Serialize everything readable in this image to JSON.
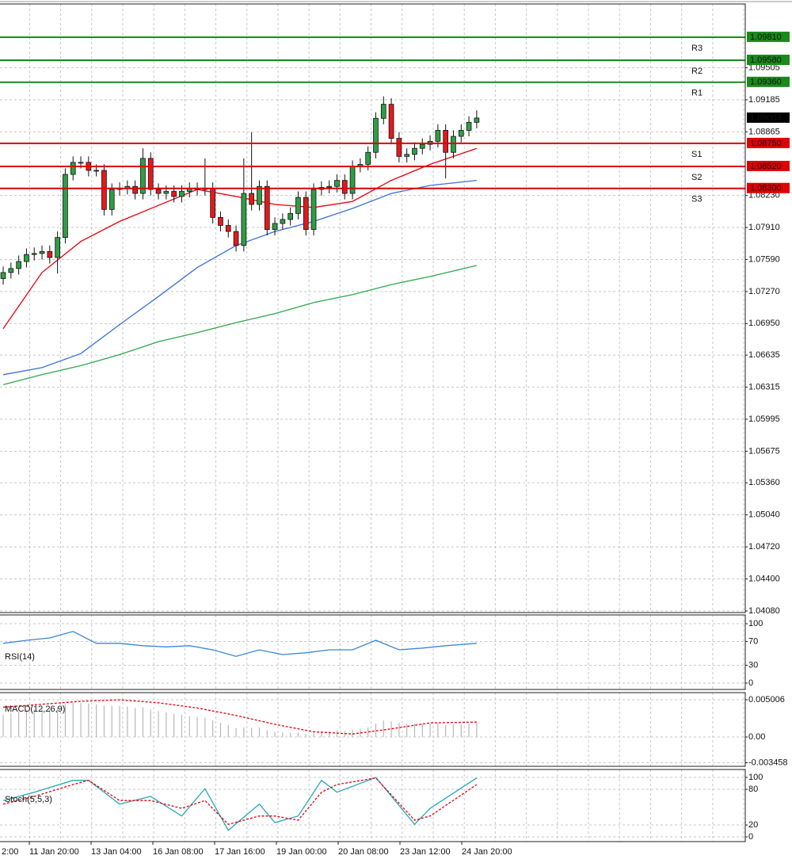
{
  "chart_data": [
    {
      "type": "candlestick",
      "xlim": [
        -0.41,
        95.6
      ],
      "ylim": [
        1.04064,
        1.10142
      ],
      "yticks": [
        1.09505,
        1.09185,
        1.08865,
        {
          "value": 1.0823,
          "label": "1.08230"
        },
        {
          "value": 1.0791,
          "label": "1.07910"
        },
        {
          "value": 1.0759,
          "label": "1.07590"
        },
        {
          "value": 1.0727,
          "label": "1.07270"
        },
        {
          "value": 1.0695,
          "label": "1.06950"
        },
        1.06635,
        1.06315,
        1.05995,
        1.05675,
        {
          "value": 1.0536,
          "label": "1.05360"
        },
        {
          "value": 1.0504,
          "label": "1.05040"
        },
        {
          "value": 1.0472,
          "label": "1.04720"
        },
        {
          "value": 1.044,
          "label": "1.04400"
        },
        {
          "value": 1.0408,
          "label": "1.04080"
        }
      ],
      "grid": true,
      "up_color": "#2f9e44",
      "down_color": "#e31a1c",
      "open": [
        1.074,
        1.0746,
        1.075,
        1.0757,
        1.0764,
        1.0765,
        1.0767,
        1.0761,
        1.0781,
        1.0844,
        1.0856,
        1.0856,
        1.0848,
        1.0848,
        1.0809,
        1.0829,
        1.083,
        1.0832,
        1.0825,
        1.086,
        1.0829,
        1.0825,
        1.0827,
        1.0822,
        1.0827,
        1.083,
        1.0829,
        1.083,
        1.0801,
        1.0793,
        1.0787,
        1.0773,
        1.0825,
        1.0814,
        1.0832,
        1.0789,
        1.0795,
        1.0799,
        1.0805,
        1.0821,
        1.0789,
        1.0829,
        1.0831,
        1.0832,
        1.0838,
        1.0825,
        1.0852,
        1.0854,
        1.0866,
        1.09,
        1.0914,
        1.088,
        1.0862,
        1.0864,
        1.087,
        1.0874,
        1.0877,
        1.0888,
        1.0866,
        1.0882,
        1.0888,
        1.0896
      ],
      "high": [
        1.0752,
        1.0756,
        1.0763,
        1.077,
        1.0771,
        1.0773,
        1.0773,
        1.0787,
        1.085,
        1.0862,
        1.0862,
        1.0862,
        1.0854,
        1.0854,
        1.0835,
        1.0836,
        1.0838,
        1.0838,
        1.087,
        1.0866,
        1.0835,
        1.0833,
        1.0833,
        1.0833,
        1.0836,
        1.0836,
        1.086,
        1.0836,
        1.0807,
        1.0799,
        1.0793,
        1.086,
        1.0886,
        1.0838,
        1.0838,
        1.0801,
        1.0805,
        1.0811,
        1.0827,
        1.0827,
        1.0835,
        1.0837,
        1.0838,
        1.0844,
        1.0844,
        1.0858,
        1.086,
        1.0872,
        1.0906,
        1.0922,
        1.092,
        1.0886,
        1.087,
        1.0876,
        1.088,
        1.0883,
        1.0894,
        1.0894,
        1.0888,
        1.0894,
        1.0902,
        1.0908
      ],
      "low": [
        1.0734,
        1.074,
        1.0744,
        1.0751,
        1.0758,
        1.0759,
        1.0755,
        1.0745,
        1.0775,
        1.0838,
        1.085,
        1.0842,
        1.0842,
        1.0803,
        1.0803,
        1.0823,
        1.0824,
        1.0819,
        1.0819,
        1.0823,
        1.0819,
        1.0819,
        1.0816,
        1.0816,
        1.0821,
        1.0823,
        1.0823,
        1.0795,
        1.0787,
        1.0781,
        1.0767,
        1.0767,
        1.0808,
        1.0808,
        1.0783,
        1.0783,
        1.0789,
        1.0793,
        1.0799,
        1.0783,
        1.0783,
        1.0823,
        1.0825,
        1.0826,
        1.0819,
        1.0819,
        1.0846,
        1.0848,
        1.086,
        1.0894,
        1.0874,
        1.0856,
        1.0856,
        1.0858,
        1.0864,
        1.0868,
        1.0871,
        1.084,
        1.086,
        1.0876,
        1.0882,
        1.089
      ],
      "close": [
        1.0746,
        1.075,
        1.0757,
        1.0764,
        1.0765,
        1.0767,
        1.0761,
        1.0781,
        1.0844,
        1.0856,
        1.0856,
        1.0848,
        1.0848,
        1.0809,
        1.0829,
        1.083,
        1.0832,
        1.0825,
        1.086,
        1.0829,
        1.0825,
        1.0827,
        1.0822,
        1.0827,
        1.083,
        1.0829,
        1.083,
        1.0801,
        1.0793,
        1.0787,
        1.0773,
        1.0825,
        1.0814,
        1.0832,
        1.0789,
        1.0795,
        1.0799,
        1.0805,
        1.0821,
        1.0789,
        1.0829,
        1.0831,
        1.0832,
        1.0838,
        1.0825,
        1.0852,
        1.0854,
        1.0866,
        1.09,
        1.0914,
        1.088,
        1.0862,
        1.0864,
        1.087,
        1.0874,
        1.0877,
        1.0888,
        1.0866,
        1.0882,
        1.0888,
        1.0896,
        1.09003
      ],
      "lines": [
        {
          "color": "#e8000b",
          "x": [
            0,
            5,
            10,
            15,
            20,
            25,
            30,
            35,
            40,
            45,
            50,
            55,
            61
          ],
          "values": [
            1.069,
            1.0746,
            1.0777,
            1.0797,
            1.0813,
            1.0829,
            1.0822,
            1.0814,
            1.0811,
            1.0817,
            1.0838,
            1.0854,
            1.087
          ]
        },
        {
          "color": "#3a6fd8",
          "x": [
            0,
            5,
            10,
            15,
            20,
            25,
            30,
            35,
            40,
            45,
            50,
            55,
            61
          ],
          "values": [
            1.0644,
            1.0651,
            1.0665,
            1.0694,
            1.0722,
            1.0751,
            1.0773,
            1.0787,
            1.0797,
            1.081,
            1.0825,
            1.0833,
            1.0838
          ]
        },
        {
          "color": "#2fa84f",
          "x": [
            0,
            5,
            10,
            15,
            20,
            25,
            30,
            35,
            40,
            45,
            50,
            55,
            61
          ],
          "values": [
            1.0634,
            1.0644,
            1.0653,
            1.0664,
            1.0677,
            1.0686,
            1.0696,
            1.0705,
            1.0716,
            1.0724,
            1.0734,
            1.0742,
            1.0753
          ]
        }
      ],
      "levels": [
        {
          "name": "R3",
          "value": 1.0981,
          "label": "1.09810",
          "color": "#1a8a1a"
        },
        {
          "name": "R2",
          "value": 1.0958,
          "label": "1.09580",
          "color": "#1a8a1a"
        },
        {
          "name": "R1",
          "value": 1.0936,
          "label": "1.09360",
          "color": "#1a8a1a"
        },
        {
          "name": "S1",
          "value": 1.0875,
          "label": "1.08750",
          "color": "#e00000"
        },
        {
          "name": "S2",
          "value": 1.0852,
          "label": "1.08520",
          "color": "#e00000"
        },
        {
          "name": "S3",
          "value": 1.083,
          "label": "1.08300",
          "color": "#e00000"
        }
      ],
      "last_price": {
        "value": 1.09003,
        "label": "1.09003"
      },
      "xlabels": [
        "2:00",
        "11 Jan 20:00",
        "13 Jan 04:00",
        "16 Jan 08:00",
        "17 Jan 16:00",
        "19 Jan 00:00",
        "20 Jan 08:00",
        "23 Jan 12:00",
        "24 Jan 20:00"
      ]
    },
    {
      "type": "line",
      "title": "RSI(14)",
      "xlim": [
        -0.41,
        95.6
      ],
      "ylim": [
        -10.7,
        114.7
      ],
      "yticks": [
        100,
        70,
        30,
        0
      ],
      "series": [
        {
          "color": "#3a86d8",
          "x": [
            0,
            3,
            6,
            9,
            12,
            15,
            18,
            21,
            24,
            27,
            30,
            33,
            36,
            39,
            42,
            45,
            48,
            51,
            54,
            57,
            61
          ],
          "values": [
            67,
            72,
            76,
            87,
            67,
            67,
            63,
            61,
            63,
            56,
            45,
            56,
            48,
            51,
            56,
            56,
            72,
            56,
            59,
            63,
            67
          ]
        }
      ]
    },
    {
      "type": "macd",
      "title": "MACD(12,26,9)",
      "xlim": [
        -0.41,
        95.6
      ],
      "ylim": [
        -0.00394,
        0.005964
      ],
      "yticks": [
        0.005006,
        {
          "value": 0,
          "label": "0.00"
        },
        -0.003458
      ],
      "bar_color": "#b8b8b8",
      "values": [
        0.003,
        0.0032,
        0.0034,
        0.0036,
        0.0037,
        0.0038,
        0.0038,
        0.004,
        0.0044,
        0.0046,
        0.0046,
        0.0045,
        0.0044,
        0.0042,
        0.0042,
        0.0042,
        0.0041,
        0.0039,
        0.004,
        0.0037,
        0.0035,
        0.0033,
        0.0031,
        0.003,
        0.0028,
        0.0027,
        0.0026,
        0.0022,
        0.0019,
        0.0016,
        0.0012,
        0.0013,
        0.0012,
        0.0013,
        0.0009,
        0.0007,
        0.0006,
        0.0005,
        0.0006,
        0.0004,
        0.0006,
        0.0007,
        0.0008,
        0.0009,
        0.0008,
        0.001,
        0.0011,
        0.0013,
        0.0018,
        0.0022,
        0.0021,
        0.0019,
        0.0018,
        0.0018,
        0.0018,
        0.0018,
        0.0019,
        0.0016,
        0.0017,
        0.0017,
        0.0018,
        0.0019
      ],
      "series": [
        {
          "color": "#e8000b",
          "style": "dashed",
          "x": [
            0,
            5,
            10,
            15,
            20,
            25,
            30,
            35,
            40,
            45,
            50,
            55,
            61
          ],
          "values": [
            0.004,
            0.0044,
            0.0048,
            0.005,
            0.0046,
            0.0039,
            0.0029,
            0.0017,
            0.0007,
            0.0004,
            0.0011,
            0.0019,
            0.002
          ]
        }
      ]
    },
    {
      "type": "line",
      "title": "Stoch(5,5,3)",
      "xlim": [
        -0.41,
        95.6
      ],
      "ylim": [
        -8,
        113.3
      ],
      "yticks": [
        100,
        80,
        20,
        0
      ],
      "series": [
        {
          "color": "#22a8b8",
          "x": [
            0,
            4,
            9,
            11,
            15,
            19,
            23,
            26,
            29,
            33,
            35,
            38,
            41,
            43,
            48,
            53,
            55,
            61
          ],
          "values": [
            61,
            75,
            95,
            95,
            55,
            68,
            35,
            81,
            11,
            55,
            24,
            35,
            95,
            75,
            100,
            21,
            48,
            99
          ]
        },
        {
          "color": "#e8000b",
          "style": "dashed",
          "x": [
            0,
            4,
            9,
            11,
            15,
            19,
            23,
            26,
            29,
            33,
            35,
            38,
            41,
            43,
            48,
            53,
            55,
            61
          ],
          "values": [
            55,
            68,
            88,
            95,
            61,
            61,
            48,
            61,
            21,
            35,
            35,
            28,
            75,
            88,
            99,
            28,
            35,
            88
          ]
        }
      ]
    }
  ]
}
